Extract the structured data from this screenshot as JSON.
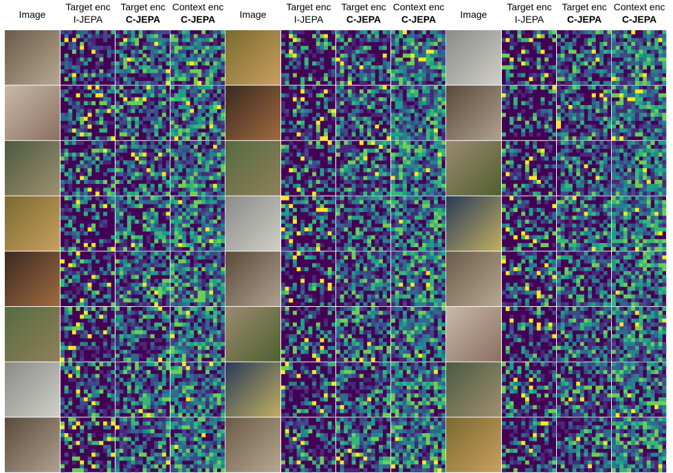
{
  "header": {
    "groups": [
      {
        "columns": [
          {
            "title": "Image"
          },
          {
            "line1": "Target enc",
            "line2": "I-JEPA"
          },
          {
            "line1": "Target enc",
            "line2": "C-JEPA"
          },
          {
            "line1": "Context enc",
            "line2": "C-JEPA"
          }
        ]
      },
      {
        "columns": [
          {
            "title": "Image"
          },
          {
            "line1": "Target enc",
            "line2": "I-JEPA"
          },
          {
            "line1": "Target enc",
            "line2": "C-JEPA"
          },
          {
            "line1": "Context enc",
            "line2": "C-JEPA"
          }
        ]
      },
      {
        "columns": [
          {
            "title": "Image"
          },
          {
            "line1": "Target enc",
            "line2": "I-JEPA"
          },
          {
            "line1": "Target enc",
            "line2": "C-JEPA"
          },
          {
            "line1": "Context enc",
            "line2": "C-JEPA"
          }
        ]
      }
    ]
  }
}
